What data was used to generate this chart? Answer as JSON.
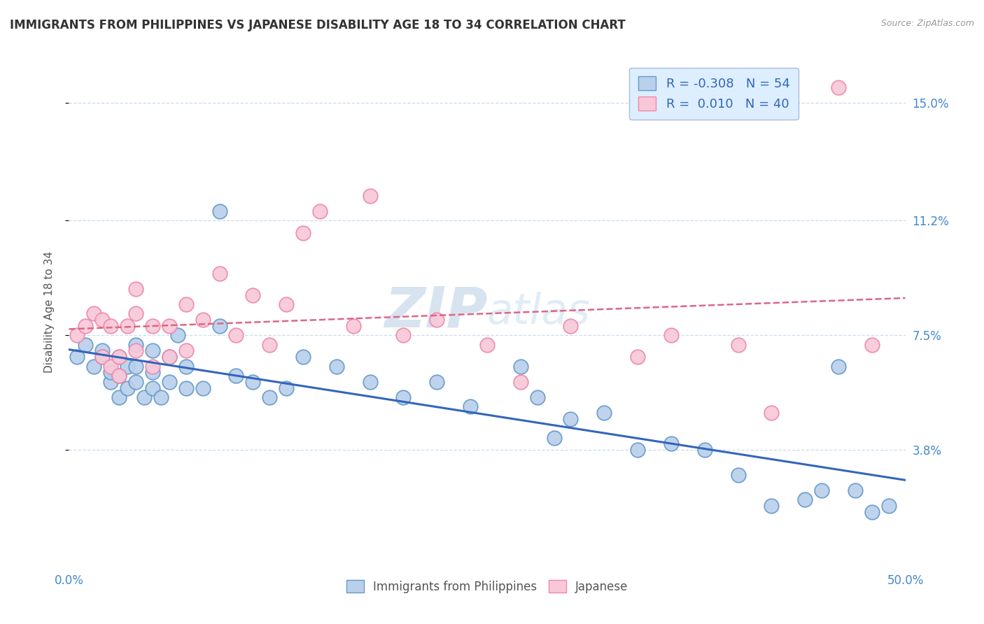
{
  "title": "IMMIGRANTS FROM PHILIPPINES VS JAPANESE DISABILITY AGE 18 TO 34 CORRELATION CHART",
  "source_text": "Source: ZipAtlas.com",
  "ylabel": "Disability Age 18 to 34",
  "xlim": [
    0.0,
    0.5
  ],
  "ylim": [
    0.0,
    0.165
  ],
  "yticks": [
    0.038,
    0.075,
    0.112,
    0.15
  ],
  "ytick_labels": [
    "3.8%",
    "7.5%",
    "11.2%",
    "15.0%"
  ],
  "xticks": [
    0.0,
    0.5
  ],
  "xtick_labels": [
    "0.0%",
    "50.0%"
  ],
  "series1_label": "Immigrants from Philippines",
  "series1_R": "-0.308",
  "series1_N": "54",
  "series1_color": "#b8d0ea",
  "series1_edge_color": "#6699cc",
  "series2_label": "Japanese",
  "series2_R": "0.010",
  "series2_N": "40",
  "series2_color": "#f8c8d8",
  "series2_edge_color": "#ee88aa",
  "trend1_color": "#3366bb",
  "trend2_color": "#dd6688",
  "grid_color": "#ccddee",
  "background_color": "#ffffff",
  "watermark": "ZIPatlas",
  "legend_facecolor": "#ddeeff",
  "legend_edgecolor": "#aabbdd",
  "series1_x": [
    0.005,
    0.01,
    0.015,
    0.02,
    0.02,
    0.025,
    0.025,
    0.03,
    0.03,
    0.03,
    0.035,
    0.035,
    0.04,
    0.04,
    0.04,
    0.045,
    0.05,
    0.05,
    0.05,
    0.055,
    0.06,
    0.06,
    0.065,
    0.07,
    0.07,
    0.08,
    0.09,
    0.09,
    0.1,
    0.11,
    0.12,
    0.13,
    0.14,
    0.16,
    0.18,
    0.2,
    0.22,
    0.24,
    0.27,
    0.28,
    0.29,
    0.3,
    0.32,
    0.34,
    0.36,
    0.38,
    0.4,
    0.42,
    0.44,
    0.45,
    0.46,
    0.47,
    0.48,
    0.49
  ],
  "series1_y": [
    0.068,
    0.072,
    0.065,
    0.07,
    0.068,
    0.06,
    0.063,
    0.055,
    0.062,
    0.068,
    0.058,
    0.065,
    0.06,
    0.065,
    0.072,
    0.055,
    0.058,
    0.063,
    0.07,
    0.055,
    0.068,
    0.06,
    0.075,
    0.058,
    0.065,
    0.058,
    0.115,
    0.078,
    0.062,
    0.06,
    0.055,
    0.058,
    0.068,
    0.065,
    0.06,
    0.055,
    0.06,
    0.052,
    0.065,
    0.055,
    0.042,
    0.048,
    0.05,
    0.038,
    0.04,
    0.038,
    0.03,
    0.02,
    0.022,
    0.025,
    0.065,
    0.025,
    0.018,
    0.02
  ],
  "series2_x": [
    0.005,
    0.01,
    0.015,
    0.02,
    0.02,
    0.025,
    0.025,
    0.03,
    0.03,
    0.035,
    0.04,
    0.04,
    0.04,
    0.05,
    0.05,
    0.06,
    0.06,
    0.07,
    0.07,
    0.08,
    0.09,
    0.1,
    0.11,
    0.12,
    0.13,
    0.14,
    0.15,
    0.17,
    0.18,
    0.2,
    0.22,
    0.25,
    0.27,
    0.3,
    0.34,
    0.36,
    0.4,
    0.42,
    0.46,
    0.48
  ],
  "series2_y": [
    0.075,
    0.078,
    0.082,
    0.068,
    0.08,
    0.065,
    0.078,
    0.062,
    0.068,
    0.078,
    0.07,
    0.082,
    0.09,
    0.065,
    0.078,
    0.068,
    0.078,
    0.07,
    0.085,
    0.08,
    0.095,
    0.075,
    0.088,
    0.072,
    0.085,
    0.108,
    0.115,
    0.078,
    0.12,
    0.075,
    0.08,
    0.072,
    0.06,
    0.078,
    0.068,
    0.075,
    0.072,
    0.05,
    0.155,
    0.072
  ]
}
